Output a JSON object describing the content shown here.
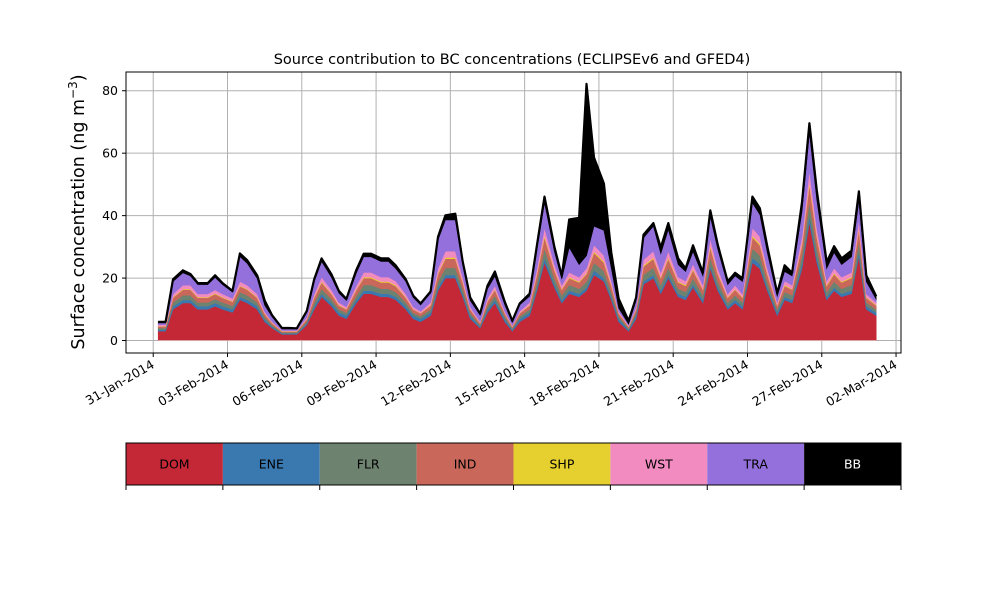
{
  "chart_data": {
    "type": "area",
    "stacked": true,
    "title": "Source contribution to BC concentrations (ECLIPSEv6 and GFED4)",
    "ylabel_main": "Surface concentration (ng m",
    "ylabel_sup": "−3",
    "ylabel_end": ")",
    "xlabel": "",
    "grid": true,
    "ylim": [
      -4,
      86
    ],
    "yticks": [
      0,
      20,
      40,
      60,
      80
    ],
    "xlim_days": [
      -1.1,
      30.2
    ],
    "xticks": [
      {
        "day": 0,
        "label": "31-Jan-2014"
      },
      {
        "day": 3,
        "label": "03-Feb-2014"
      },
      {
        "day": 6,
        "label": "06-Feb-2014"
      },
      {
        "day": 9,
        "label": "09-Feb-2014"
      },
      {
        "day": 12,
        "label": "12-Feb-2014"
      },
      {
        "day": 15,
        "label": "15-Feb-2014"
      },
      {
        "day": 18,
        "label": "18-Feb-2014"
      },
      {
        "day": 21,
        "label": "21-Feb-2014"
      },
      {
        "day": 24,
        "label": "24-Feb-2014"
      },
      {
        "day": 27,
        "label": "27-Feb-2014"
      },
      {
        "day": 30,
        "label": "02-Mar-2014"
      }
    ],
    "x_days": [
      0.2,
      0.5,
      0.8,
      1.2,
      1.5,
      1.8,
      2.2,
      2.5,
      2.8,
      3.2,
      3.5,
      3.8,
      4.2,
      4.5,
      4.8,
      5.2,
      5.5,
      5.8,
      6.2,
      6.5,
      6.8,
      7.2,
      7.5,
      7.8,
      8.2,
      8.5,
      8.8,
      9.2,
      9.5,
      9.8,
      10.2,
      10.5,
      10.8,
      11.2,
      11.5,
      11.8,
      12.2,
      12.5,
      12.8,
      13.2,
      13.5,
      13.8,
      14.2,
      14.5,
      14.8,
      15.2,
      15.5,
      15.8,
      16.2,
      16.5,
      16.8,
      17.2,
      17.5,
      17.8,
      18.2,
      18.5,
      18.8,
      19.2,
      19.5,
      19.8,
      20.2,
      20.5,
      20.8,
      21.2,
      21.5,
      21.8,
      22.2,
      22.5,
      22.8,
      23.2,
      23.5,
      23.8,
      24.2,
      24.5,
      24.8,
      25.2,
      25.5,
      25.8,
      26.2,
      26.5,
      26.8,
      27.2,
      27.5,
      27.8,
      28.2,
      28.5,
      28.8,
      29.2
    ],
    "sources": [
      "DOM",
      "ENE",
      "FLR",
      "IND",
      "SHP",
      "WST",
      "TRA",
      "BB"
    ],
    "colors": {
      "DOM": "#c42837",
      "ENE": "#3a78b0",
      "FLR": "#6e8270",
      "IND": "#c9685a",
      "SHP": "#e6d02f",
      "WST": "#f28cc0",
      "TRA": "#9370db",
      "BB": "#000000"
    },
    "series": [
      {
        "name": "DOM",
        "values": [
          3,
          3,
          10,
          12,
          12,
          10,
          10,
          11,
          10,
          9,
          13,
          12,
          10,
          6,
          4,
          2,
          2,
          2,
          5,
          10,
          14,
          11,
          8,
          7,
          12,
          15,
          15,
          14,
          14,
          13,
          10,
          7,
          6,
          8,
          16,
          20,
          20,
          14,
          7,
          4,
          9,
          12,
          6,
          3,
          6,
          8,
          16,
          25,
          17,
          12,
          15,
          14,
          16,
          21,
          19,
          13,
          6,
          3,
          7,
          18,
          20,
          15,
          20,
          14,
          13,
          17,
          12,
          23,
          16,
          10,
          12,
          10,
          25,
          23,
          16,
          8,
          13,
          12,
          23,
          38,
          25,
          13,
          16,
          14,
          15,
          27,
          10,
          8
        ]
      },
      {
        "name": "ENE",
        "values": [
          0.5,
          0.5,
          1,
          1,
          1,
          1,
          1,
          1,
          1,
          1,
          1,
          1,
          1,
          0.8,
          0.5,
          0.3,
          0.3,
          0.3,
          0.5,
          1,
          1,
          1,
          1,
          1,
          1,
          1,
          1,
          1,
          1,
          1,
          1,
          1,
          1,
          1,
          1,
          1,
          1,
          1,
          1,
          0.5,
          1,
          1,
          1,
          0.5,
          1,
          1,
          1,
          1.5,
          1,
          1,
          1,
          1,
          1,
          1.5,
          1,
          1,
          1,
          0.5,
          1,
          1,
          1,
          1,
          1,
          1,
          1,
          1,
          1,
          1,
          1,
          1,
          1,
          1,
          1.5,
          1.5,
          1,
          1,
          1,
          1,
          1.5,
          2,
          1.5,
          1,
          1,
          1,
          1,
          1.5,
          1,
          1
        ]
      },
      {
        "name": "FLR",
        "values": [
          0.5,
          0.5,
          1.2,
          1.5,
          1.5,
          1.2,
          1.2,
          1.3,
          1.2,
          1.1,
          1.5,
          1.5,
          1.2,
          0.8,
          0.5,
          0.3,
          0.3,
          0.3,
          0.6,
          1.2,
          1.6,
          1.3,
          1,
          0.9,
          1.4,
          1.8,
          1.8,
          1.6,
          1.6,
          1.5,
          1.2,
          0.9,
          0.8,
          1,
          1.9,
          2.3,
          2.3,
          1.6,
          0.9,
          0.5,
          1.1,
          1.4,
          0.8,
          0.4,
          0.8,
          1,
          1.9,
          3,
          2,
          1.5,
          1.8,
          1.6,
          1.9,
          2.5,
          2.2,
          1.6,
          0.8,
          0.4,
          0.9,
          2.1,
          2.3,
          1.8,
          2.3,
          1.6,
          1.6,
          2,
          1.5,
          2.6,
          1.9,
          1.2,
          1.5,
          1.2,
          3,
          2.7,
          1.9,
          1,
          1.6,
          1.5,
          2.7,
          4.5,
          3,
          1.6,
          1.9,
          1.6,
          1.8,
          3.2,
          1.2,
          1
        ]
      },
      {
        "name": "IND",
        "values": [
          0.5,
          0.5,
          1.5,
          1.8,
          1.8,
          1.5,
          1.5,
          1.6,
          1.5,
          1.3,
          1.9,
          1.8,
          1.5,
          1,
          0.6,
          0.3,
          0.3,
          0.3,
          0.8,
          1.5,
          2,
          1.6,
          1.2,
          1.1,
          1.8,
          2.2,
          2.2,
          2,
          2,
          1.9,
          1.5,
          1.1,
          0.9,
          1.2,
          2.4,
          2.9,
          2.9,
          2,
          1.1,
          0.6,
          1.4,
          1.8,
          0.9,
          0.5,
          0.9,
          1.2,
          2.4,
          3.6,
          2.5,
          1.8,
          2.2,
          2,
          2.4,
          3.1,
          2.8,
          2,
          0.9,
          0.5,
          1.1,
          2.6,
          2.9,
          2.2,
          2.9,
          2,
          1.9,
          2.5,
          1.8,
          3.3,
          2.4,
          1.5,
          1.8,
          1.5,
          3.6,
          3.3,
          2.4,
          1.2,
          1.9,
          1.8,
          3.3,
          5.5,
          3.6,
          1.9,
          2.4,
          2,
          2.2,
          3.9,
          1.5,
          1.2
        ]
      },
      {
        "name": "SHP",
        "values": [
          0.1,
          0.1,
          0.2,
          0.2,
          0.2,
          0.2,
          0.2,
          0.2,
          0.2,
          0.2,
          0.2,
          0.2,
          0.2,
          0.1,
          0.1,
          0.1,
          0.1,
          0.1,
          0.1,
          0.2,
          0.3,
          0.2,
          0.2,
          0.1,
          0.2,
          0.3,
          0.3,
          0.3,
          0.3,
          0.3,
          0.2,
          0.1,
          0.1,
          0.2,
          0.3,
          0.4,
          0.4,
          0.3,
          0.1,
          0.1,
          0.2,
          0.2,
          0.1,
          0.1,
          0.1,
          0.2,
          0.3,
          0.5,
          0.3,
          0.2,
          0.3,
          0.3,
          0.3,
          0.4,
          0.4,
          0.3,
          0.1,
          0.1,
          0.1,
          0.4,
          0.4,
          0.3,
          0.4,
          0.3,
          0.3,
          0.3,
          0.2,
          0.5,
          0.3,
          0.2,
          0.2,
          0.2,
          0.5,
          0.5,
          0.3,
          0.2,
          0.3,
          0.2,
          0.5,
          0.8,
          0.5,
          0.3,
          0.3,
          0.3,
          0.3,
          0.5,
          0.2,
          0.2
        ]
      },
      {
        "name": "WST",
        "values": [
          0.5,
          0.5,
          1,
          1.2,
          1.2,
          1,
          1,
          1.1,
          1,
          0.9,
          1.3,
          1.2,
          1,
          0.6,
          0.4,
          0.2,
          0.2,
          0.2,
          0.5,
          1,
          1.4,
          1.1,
          0.8,
          0.7,
          1.2,
          1.5,
          1.5,
          1.4,
          1.4,
          1.3,
          1,
          0.7,
          0.6,
          0.8,
          1.6,
          2,
          2,
          1.4,
          0.7,
          0.4,
          0.9,
          1.2,
          0.6,
          0.3,
          0.6,
          0.8,
          1.6,
          2.5,
          1.7,
          1.2,
          1.5,
          1.4,
          1.6,
          2.1,
          1.9,
          1.3,
          0.6,
          0.3,
          0.7,
          1.8,
          2,
          1.5,
          2,
          1.4,
          1.3,
          1.7,
          1.2,
          2.3,
          1.6,
          1,
          1.2,
          1,
          2.5,
          2.3,
          1.6,
          0.8,
          1.3,
          1.2,
          2.3,
          3.8,
          2.5,
          1.3,
          1.6,
          1.4,
          1.5,
          2.7,
          1,
          0.8
        ]
      },
      {
        "name": "TRA",
        "values": [
          0.5,
          0.5,
          4,
          4,
          3,
          3,
          3,
          4,
          3,
          2,
          8,
          7,
          5,
          2,
          1.5,
          0.5,
          0.5,
          0.5,
          1.5,
          4,
          5,
          4,
          3,
          2,
          4,
          5,
          5,
          5,
          5,
          4,
          4,
          3,
          2,
          3,
          9,
          10,
          10,
          4,
          2,
          2,
          3,
          3,
          2,
          1,
          2,
          2,
          6,
          8,
          4,
          2,
          8,
          4,
          4,
          6,
          8,
          4,
          1,
          0.5,
          2,
          7,
          8,
          6,
          7,
          4,
          3,
          4,
          3,
          7,
          6,
          3,
          3,
          4,
          8,
          7,
          5,
          2,
          3,
          3,
          8,
          12,
          9,
          4,
          5,
          4,
          5,
          6,
          4,
          1
        ]
      },
      {
        "name": "BB",
        "values": [
          0.4,
          0.4,
          0.7,
          0.8,
          0.6,
          0.5,
          0.5,
          0.7,
          0.5,
          0.4,
          1,
          1,
          1,
          1.5,
          0.5,
          0.3,
          0.3,
          0.2,
          0.5,
          0.7,
          1,
          1,
          0.7,
          0.5,
          1,
          1,
          1,
          1,
          1,
          1,
          0.7,
          0.6,
          0.5,
          0.5,
          1,
          1.5,
          2,
          1,
          1,
          0.5,
          1,
          1.5,
          1,
          0.5,
          0.5,
          0.8,
          1.5,
          2,
          1.5,
          1,
          9,
          15,
          55,
          22,
          15,
          5,
          3,
          1,
          1,
          1,
          1,
          2,
          2,
          2,
          1,
          2,
          1,
          2,
          1.5,
          1,
          1,
          1,
          2,
          2,
          2,
          1,
          2,
          1,
          3,
          3,
          3,
          2,
          2,
          2,
          2,
          3,
          2,
          1
        ]
      }
    ],
    "legend": {
      "placement": "bottom",
      "entries": [
        "DOM",
        "ENE",
        "FLR",
        "IND",
        "SHP",
        "WST",
        "TRA",
        "BB"
      ],
      "text_colors": {
        "DOM": "#000000",
        "ENE": "#000000",
        "FLR": "#000000",
        "IND": "#000000",
        "SHP": "#000000",
        "WST": "#000000",
        "TRA": "#000000",
        "BB": "#ffffff"
      }
    }
  }
}
